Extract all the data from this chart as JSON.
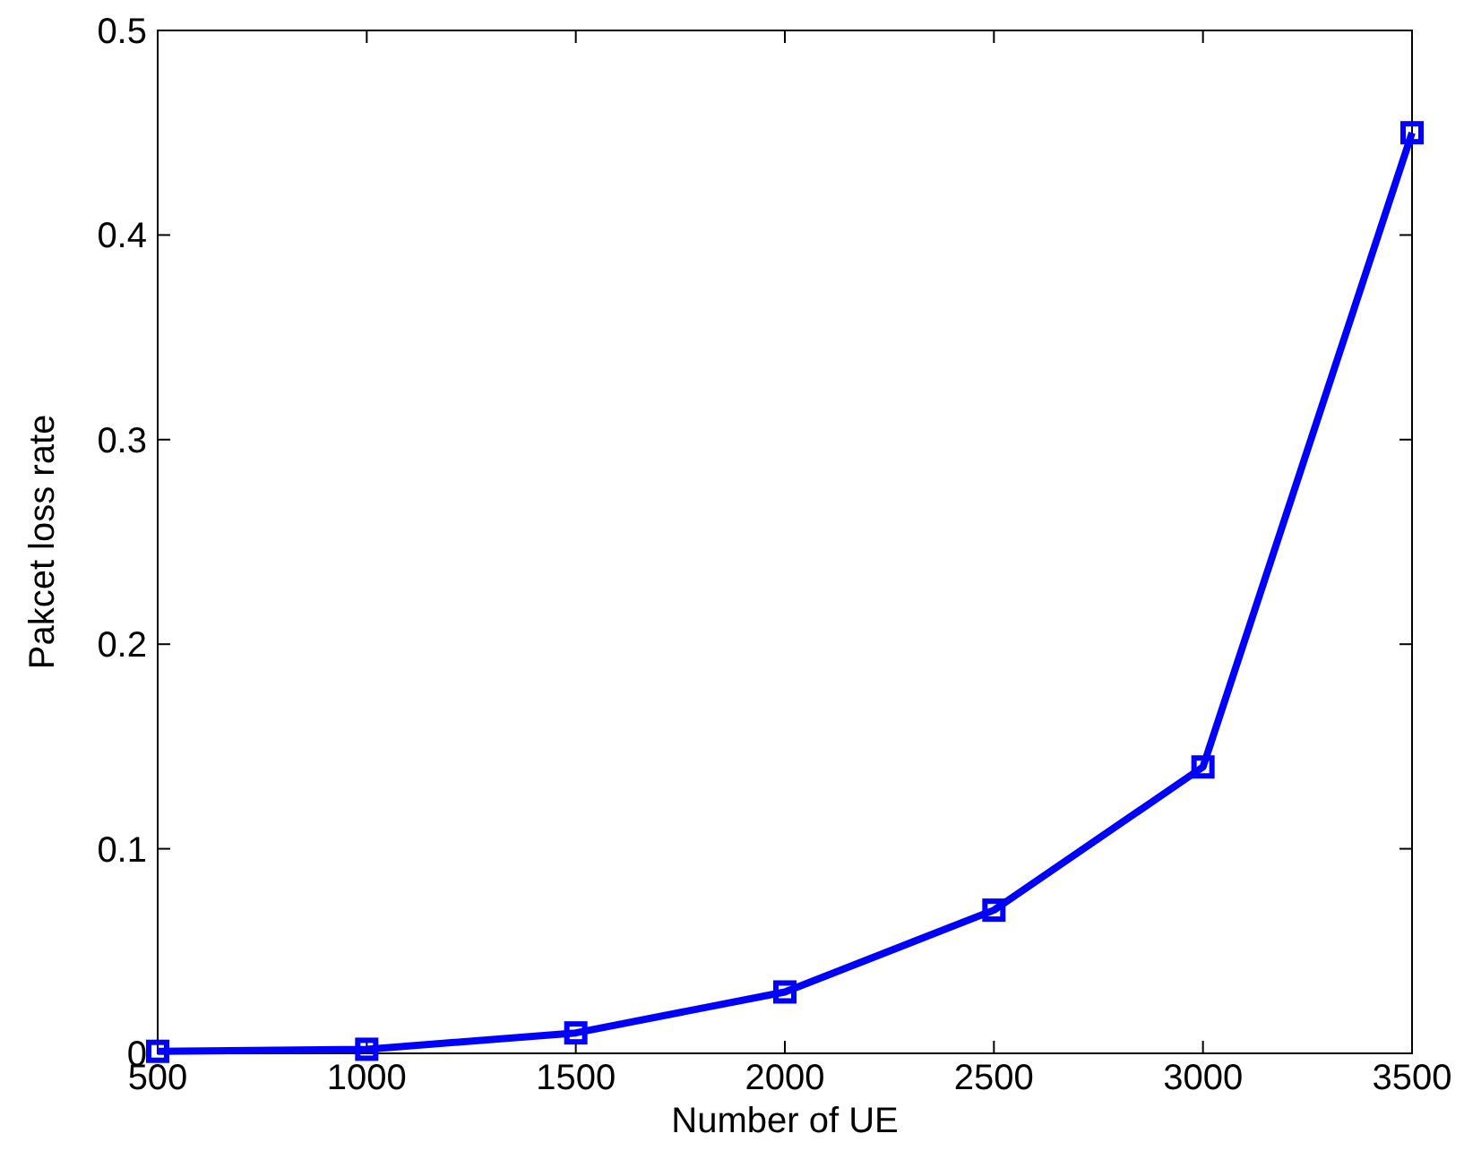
{
  "chart_data": {
    "type": "line",
    "xlabel": "Number of UE",
    "ylabel": "Pakcet loss rate",
    "x": [
      500,
      1000,
      1500,
      2000,
      2500,
      3000,
      3500
    ],
    "series": [
      {
        "color": "#0000ff",
        "values": [
          0.001,
          0.002,
          0.01,
          0.03,
          0.07,
          0.14,
          0.45
        ]
      }
    ],
    "xlim": [
      500,
      3500
    ],
    "xticks": [
      500,
      1000,
      1500,
      2000,
      2500,
      3000,
      3500
    ],
    "ylim": [
      0,
      0.5
    ],
    "yticks": [
      0,
      0.1,
      0.2,
      0.3,
      0.4,
      0.5
    ],
    "marker": "square",
    "line_style": "solid"
  }
}
